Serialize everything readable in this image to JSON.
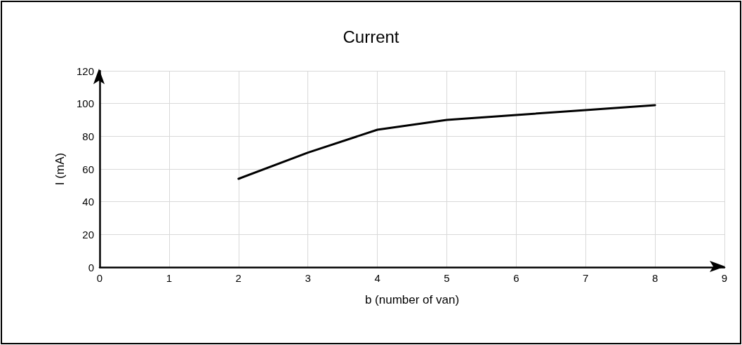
{
  "chart_data": {
    "type": "line",
    "title": "Current",
    "xlabel": "b (number of van)",
    "ylabel": "I (mA)",
    "x": [
      2,
      3,
      4,
      5,
      6,
      7,
      8
    ],
    "series": [
      {
        "color": "#000000",
        "values": [
          54,
          70,
          84,
          90,
          93,
          96,
          99
        ]
      }
    ],
    "xlim": [
      0,
      9
    ],
    "xticks": [
      0,
      1,
      2,
      3,
      4,
      5,
      6,
      7,
      8,
      9
    ],
    "ylim": [
      0,
      120
    ],
    "yticks": [
      0,
      20,
      40,
      60,
      80,
      100,
      120
    ],
    "grid": true,
    "marker": "none",
    "line_style": "solid"
  }
}
